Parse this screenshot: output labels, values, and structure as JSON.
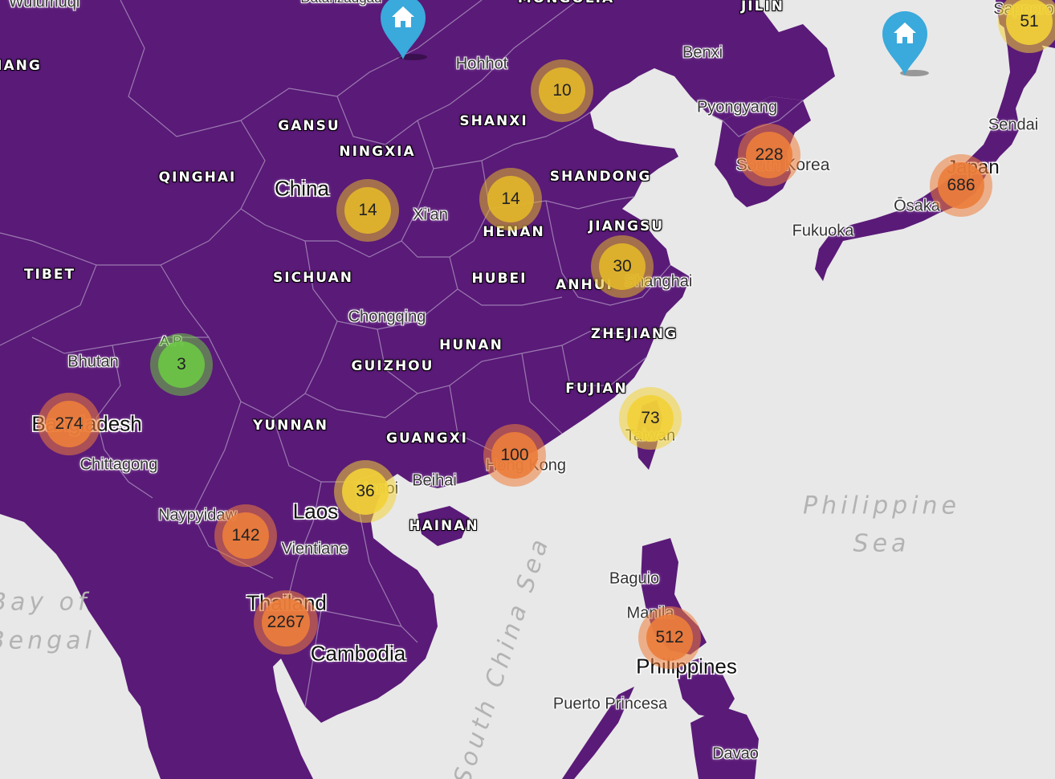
{
  "colors": {
    "land": "#5a1a78",
    "water": "#e8e8e8",
    "border": "#9b7ab0",
    "cluster_green": "#6cc644",
    "cluster_yellow": "#e2b72a",
    "cluster_lightyellow": "#f2d237",
    "cluster_orange": "#ec7d3b",
    "pin": "#3aa9dc"
  },
  "labels": {
    "wulumuqi": "Wulumuqi",
    "hohhot": "Hohhot",
    "benxi": "Benxi",
    "jilin": "JILIN",
    "mongolia": "MONGOLIA",
    "sapporo": "Sapporo",
    "pyongyang": "Pyongyang",
    "sendai": "Sendai",
    "gansu": "GANSU",
    "shanxi": "SHANXI",
    "ningxia": "NINGXIA",
    "qinghai": "QINGHAI",
    "china": "China",
    "xian": "Xi'an",
    "shandong": "SHANDONG",
    "henan": "HENAN",
    "jiangsu": "JIANGSU",
    "japan": "Japan",
    "south_korea": "South Korea",
    "osaka": "Ōsaka",
    "fukuoka": "Fukuoka",
    "tibet": "TIBET",
    "sichuan": "SICHUAN",
    "hubei": "HUBEI",
    "anhui": "ANHUI",
    "shanghai": "Shanghai",
    "chongqing": "Chongqing",
    "hunan": "HUNAN",
    "zhejiang": "ZHEJIANG",
    "bhutan": "Bhutan",
    "ap": "A.P.",
    "guizhou": "GUIZHOU",
    "fujian": "FUJIAN",
    "bangladesh": "Bangladesh",
    "yunnan": "YUNNAN",
    "guangxi": "GUANGXI",
    "chittagong": "Chittagong",
    "taiwan": "Taiwan",
    "hong_kong": "Hong Kong",
    "beihai": "Beihai",
    "hanoi": "Hanoi",
    "naypyidaw": "Naypyidaw",
    "laos": "Laos",
    "hainan": "HAINAN",
    "vientiane": "Vientiane",
    "thailand": "Thailand",
    "cambodia": "Cambodia",
    "baguio": "Baguio",
    "manila": "Manila",
    "philippines": "Philippines",
    "puerto_princesa": "Puerto Princesa",
    "davao": "Davao",
    "bay_of_bengal_1": "Bay of",
    "bay_of_bengal_2": "Bengal",
    "south_china_sea": "South China Sea",
    "philippine_sea_1": "Philippine",
    "philippine_sea_2": "Sea",
    "dataguul": "Datanzadgad",
    "iang": "IANG"
  },
  "clusters": [
    {
      "name": "beijing",
      "count": "10",
      "color": "yellow"
    },
    {
      "name": "xian",
      "count": "14",
      "color": "yellow"
    },
    {
      "name": "henan",
      "count": "14",
      "color": "yellow"
    },
    {
      "name": "shanghai",
      "count": "30",
      "color": "yellow"
    },
    {
      "name": "south-korea",
      "count": "228",
      "color": "orange"
    },
    {
      "name": "japan",
      "count": "686",
      "color": "orange"
    },
    {
      "name": "sapporo",
      "count": "51",
      "color": "lightyellow"
    },
    {
      "name": "arunachal",
      "count": "3",
      "color": "green"
    },
    {
      "name": "bangladesh",
      "count": "274",
      "color": "orange"
    },
    {
      "name": "taiwan",
      "count": "73",
      "color": "lightyellow"
    },
    {
      "name": "hong-kong",
      "count": "100",
      "color": "orange"
    },
    {
      "name": "hanoi",
      "count": "36",
      "color": "lightyellow"
    },
    {
      "name": "myanmar",
      "count": "142",
      "color": "orange"
    },
    {
      "name": "thailand",
      "count": "2267",
      "color": "orange"
    },
    {
      "name": "philippines",
      "count": "512",
      "color": "orange"
    }
  ],
  "pins": [
    {
      "name": "home-pin-mongolia",
      "icon": "home-icon"
    },
    {
      "name": "home-pin-japan-sea",
      "icon": "home-icon"
    }
  ]
}
